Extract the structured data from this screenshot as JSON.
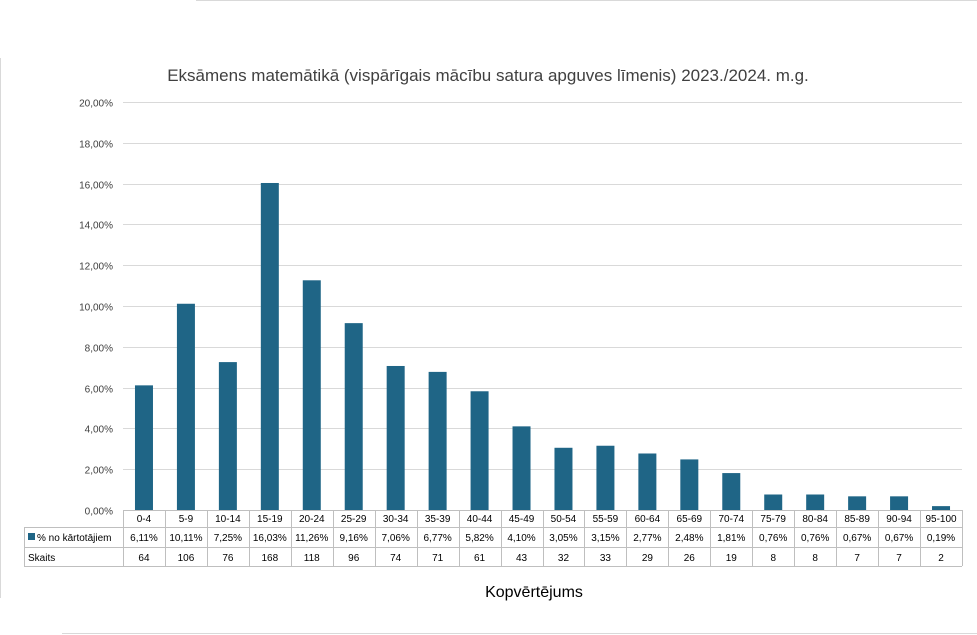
{
  "chart_data": {
    "type": "bar",
    "title": "Eksāmens matemātikā (vispārīgais mācību satura apguves līmenis) 2023./2024. m.g.",
    "xlabel": "Kopvērtējums",
    "ylabel": "",
    "ylim": [
      0,
      20
    ],
    "yticks": [
      "0,00%",
      "2,00%",
      "4,00%",
      "6,00%",
      "8,00%",
      "10,00%",
      "12,00%",
      "14,00%",
      "16,00%",
      "18,00%",
      "20,00%"
    ],
    "grid": true,
    "bar_color": "#1f6586",
    "categories": [
      "0-4",
      "5-9",
      "10-14",
      "15-19",
      "20-24",
      "25-29",
      "30-34",
      "35-39",
      "40-44",
      "45-49",
      "50-54",
      "55-59",
      "60-64",
      "65-69",
      "70-74",
      "75-79",
      "80-84",
      "85-89",
      "90-94",
      "95-100"
    ],
    "series": [
      {
        "name": "% no kārtotājiem",
        "values": [
          6.11,
          10.11,
          7.25,
          16.03,
          11.26,
          9.16,
          7.06,
          6.77,
          5.82,
          4.1,
          3.05,
          3.15,
          2.77,
          2.48,
          1.81,
          0.76,
          0.76,
          0.67,
          0.67,
          0.19
        ],
        "labels": [
          "6,11%",
          "10,11%",
          "7,25%",
          "16,03%",
          "11,26%",
          "9,16%",
          "7,06%",
          "6,77%",
          "5,82%",
          "4,10%",
          "3,05%",
          "3,15%",
          "2,77%",
          "2,48%",
          "1,81%",
          "0,76%",
          "0,76%",
          "0,67%",
          "0,67%",
          "0,19%"
        ]
      }
    ],
    "table": {
      "count_label": "Skaits",
      "counts": [
        "64",
        "106",
        "76",
        "168",
        "118",
        "96",
        "74",
        "71",
        "61",
        "43",
        "32",
        "33",
        "29",
        "26",
        "19",
        "8",
        "8",
        "7",
        "7",
        "2"
      ]
    }
  }
}
